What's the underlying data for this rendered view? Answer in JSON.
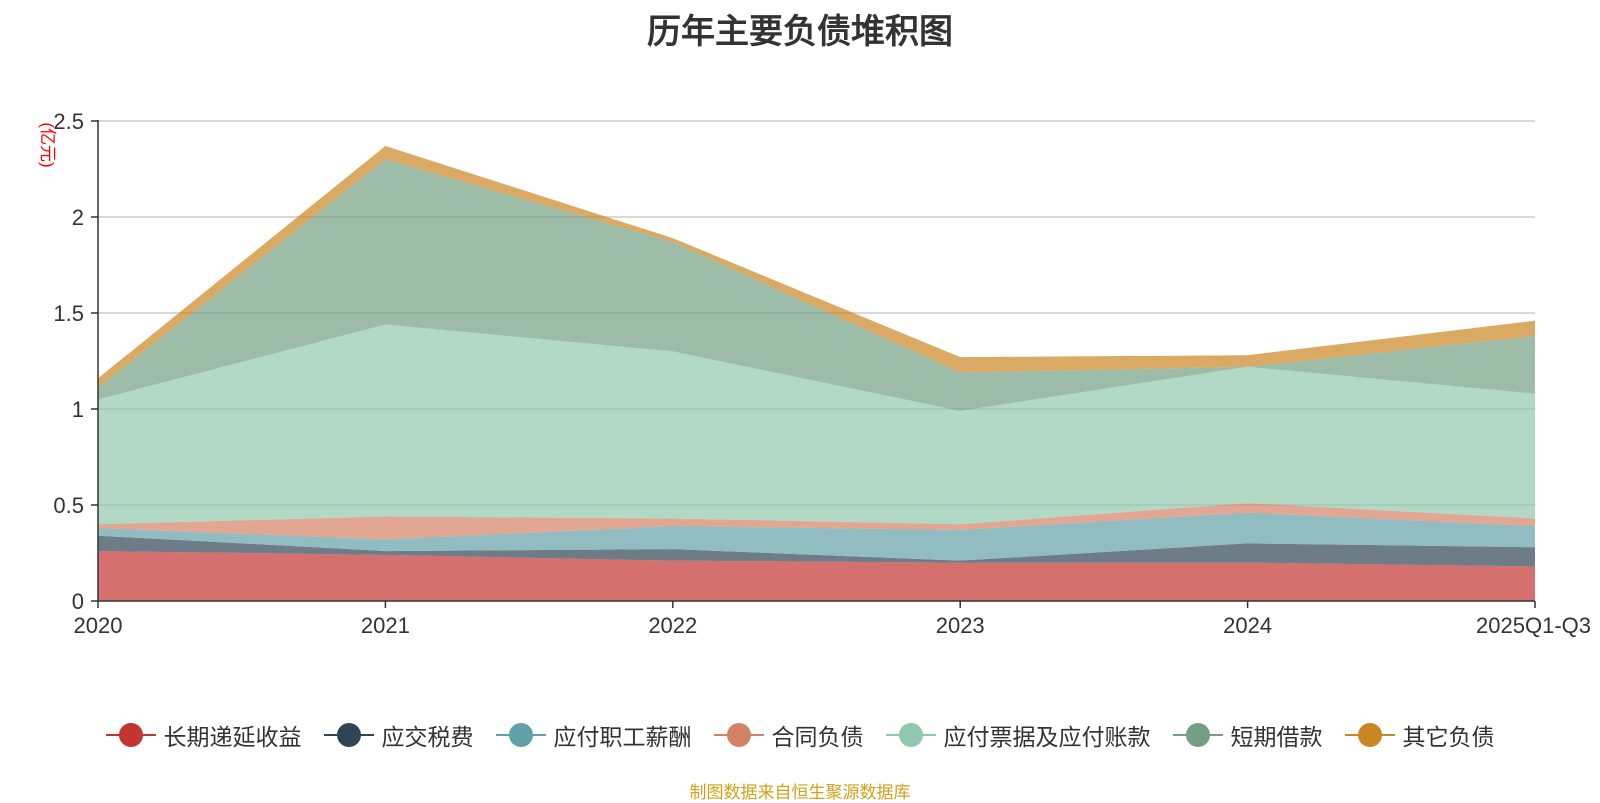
{
  "chart_data": {
    "type": "area",
    "stacked": true,
    "title": "历年主要负债堆积图",
    "ylabel": "(亿元)",
    "xlabel": "",
    "categories": [
      "2020",
      "2021",
      "2022",
      "2023",
      "2024",
      "2025Q1-Q3"
    ],
    "ylim": [
      0,
      2.5
    ],
    "yticks": [
      0,
      0.5,
      1,
      1.5,
      2,
      2.5
    ],
    "ytick_labels": [
      "0",
      "0.5",
      "1",
      "1.5",
      "2",
      "2.5"
    ],
    "grid": true,
    "legend_position": "bottom",
    "series": [
      {
        "name": "长期递延收益",
        "color": "#c23531",
        "values": [
          0.26,
          0.24,
          0.21,
          0.2,
          0.2,
          0.18
        ]
      },
      {
        "name": "应交税费",
        "color": "#2f4554",
        "values": [
          0.08,
          0.02,
          0.06,
          0.01,
          0.1,
          0.1
        ]
      },
      {
        "name": "应付职工薪酬",
        "color": "#61a0a8",
        "values": [
          0.04,
          0.06,
          0.12,
          0.16,
          0.16,
          0.11
        ]
      },
      {
        "name": "合同负债",
        "color": "#d48265",
        "values": [
          0.02,
          0.12,
          0.04,
          0.03,
          0.05,
          0.04
        ]
      },
      {
        "name": "应付票据及应付账款",
        "color": "#91c7ae",
        "values": [
          0.65,
          1.0,
          0.87,
          0.59,
          0.71,
          0.65
        ]
      },
      {
        "name": "短期借款",
        "color": "#749f83",
        "values": [
          0.06,
          0.86,
          0.57,
          0.2,
          0.0,
          0.3
        ]
      },
      {
        "name": "其它负债",
        "color": "#ca8622",
        "values": [
          0.05,
          0.07,
          0.02,
          0.08,
          0.06,
          0.08
        ]
      }
    ]
  },
  "source_note": "制图数据来自恒生聚源数据库"
}
